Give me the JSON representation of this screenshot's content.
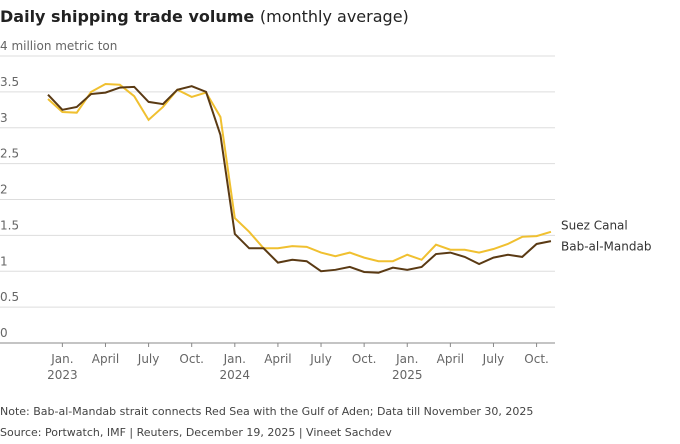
{
  "chart_data": {
    "type": "line",
    "title": "Daily shipping trade volume",
    "subtitle": "(monthly average)",
    "categories": [
      null,
      "Jan. 2023",
      null,
      null,
      "April",
      null,
      null,
      "July",
      null,
      null,
      "Oct.",
      null,
      null,
      "Jan. 2024",
      null,
      null,
      "April",
      null,
      null,
      "July",
      null,
      null,
      "Oct.",
      null,
      null,
      "Jan. 2025",
      null,
      null,
      "April",
      null,
      null,
      "July",
      null,
      null,
      "Oct.",
      null
    ],
    "series": [
      {
        "name": "Suez Canal",
        "color": "#f0c030",
        "values": [
          3.4,
          3.22,
          3.21,
          3.5,
          3.61,
          3.6,
          3.44,
          3.11,
          3.29,
          3.53,
          3.43,
          3.49,
          3.15,
          1.74,
          1.55,
          1.32,
          1.32,
          1.35,
          1.34,
          1.26,
          1.21,
          1.26,
          1.19,
          1.14,
          1.14,
          1.23,
          1.16,
          1.37,
          1.3,
          1.3,
          1.26,
          1.31,
          1.38,
          1.48,
          1.49,
          1.55
        ]
      },
      {
        "name": "Bab-al-Mandab",
        "color": "#5a3a14",
        "values": [
          3.46,
          3.25,
          3.29,
          3.47,
          3.49,
          3.56,
          3.57,
          3.36,
          3.33,
          3.53,
          3.58,
          3.5,
          2.9,
          1.52,
          1.32,
          1.32,
          1.12,
          1.16,
          1.14,
          1.0,
          1.02,
          1.06,
          0.99,
          0.98,
          1.05,
          1.02,
          1.06,
          1.24,
          1.26,
          1.2,
          1.1,
          1.19,
          1.23,
          1.2,
          1.38,
          1.42
        ]
      }
    ],
    "ylim": [
      0,
      4
    ],
    "yticks": [
      0,
      0.5,
      1,
      1.5,
      2,
      2.5,
      3,
      3.5,
      {
        "value": 4,
        "label": "4 million metric ton"
      }
    ],
    "grid": true,
    "note": "Note: Bab-al-Mandab strait connects Red Sea with the Gulf of Aden; Data till November 30, 2025",
    "source": "Source: Portwatch, IMF | Reuters, December 19, 2025  | Vineet Sachdev"
  }
}
